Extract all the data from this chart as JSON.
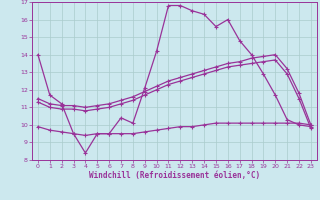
{
  "xlabel": "Windchill (Refroidissement éolien,°C)",
  "x": [
    0,
    1,
    2,
    3,
    4,
    5,
    6,
    7,
    8,
    9,
    10,
    11,
    12,
    13,
    14,
    15,
    16,
    17,
    18,
    19,
    20,
    21,
    22,
    23
  ],
  "line_top": [
    14.0,
    11.7,
    11.2,
    9.5,
    8.4,
    9.5,
    9.5,
    10.4,
    10.1,
    12.1,
    14.2,
    16.8,
    16.8,
    16.5,
    16.3,
    15.6,
    16.0,
    14.8,
    14.0,
    12.9,
    11.7,
    10.3,
    10.0,
    9.9
  ],
  "line_mid_upper": [
    11.5,
    11.2,
    11.1,
    11.1,
    11.0,
    11.1,
    11.2,
    11.4,
    11.6,
    11.9,
    12.2,
    12.5,
    12.7,
    12.9,
    13.1,
    13.3,
    13.5,
    13.6,
    13.8,
    13.9,
    14.0,
    13.2,
    11.8,
    10.0
  ],
  "line_mid_lower": [
    11.3,
    11.0,
    10.9,
    10.9,
    10.8,
    10.9,
    11.0,
    11.2,
    11.4,
    11.7,
    12.0,
    12.3,
    12.5,
    12.7,
    12.9,
    13.1,
    13.3,
    13.4,
    13.5,
    13.6,
    13.7,
    12.9,
    11.5,
    9.8
  ],
  "line_bot": [
    9.9,
    9.7,
    9.6,
    9.5,
    9.4,
    9.5,
    9.5,
    9.5,
    9.5,
    9.6,
    9.7,
    9.8,
    9.9,
    9.9,
    10.0,
    10.1,
    10.1,
    10.1,
    10.1,
    10.1,
    10.1,
    10.1,
    10.1,
    10.0
  ],
  "bg_color": "#cce8ee",
  "grid_color": "#aacccc",
  "line_color": "#993399",
  "ylim": [
    8,
    17
  ],
  "xlim": [
    -0.5,
    23.5
  ],
  "yticks": [
    8,
    9,
    10,
    11,
    12,
    13,
    14,
    15,
    16,
    17
  ],
  "xticks": [
    0,
    1,
    2,
    3,
    4,
    5,
    6,
    7,
    8,
    9,
    10,
    11,
    12,
    13,
    14,
    15,
    16,
    17,
    18,
    19,
    20,
    21,
    22,
    23
  ]
}
